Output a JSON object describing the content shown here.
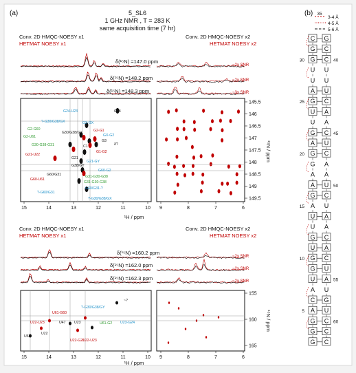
{
  "panel_a_label": "(a)",
  "panel_b_label": "(b)",
  "header": {
    "line1": "5_SL6",
    "line2": "1 GHz NMR , T = 283 K",
    "line3": "same acquisition time (7 hr)"
  },
  "colors": {
    "black": "#111111",
    "red": "#c00000",
    "blue": "#1a8fc9",
    "green": "#2e9a2e",
    "grey": "#888888"
  },
  "top": {
    "left_title_black": "Conv. 2D HMQC-NOESY x1",
    "left_title_red": "HETMAT NOESY x1",
    "right_title_black": "Conv. 2D HMQC-NOESY x2",
    "right_title_red": "HETMAT NOESY x2",
    "slice_labels": [
      "δ(¹⁵N) =147.0 ppm",
      "δ(¹⁵N) =148.2 ppm",
      "δ(¹⁵N) =148.3 ppm"
    ],
    "snr_labels": [
      "~2x SNR",
      "~2x SNR",
      "~3x SNR"
    ],
    "n_ticks": [
      "145.5",
      "146",
      "146.5",
      "147",
      "147.5",
      "148",
      "148.5",
      "149",
      "149.5"
    ],
    "n_axis_label": "¹⁵N / ppm",
    "h_ticks_left": [
      "15",
      "14",
      "13",
      "12",
      "11",
      "10"
    ],
    "h_ticks_right": [
      "9",
      "8",
      "7",
      "6"
    ],
    "h_axis_label": "¹H / ppm",
    "peaks": [
      {
        "t": "G24-U23",
        "c": "blue"
      },
      {
        "t": "G24",
        "c": "black"
      },
      {
        "t": "?-G30/G38/GX",
        "c": "blue"
      },
      {
        "t": "G2-G60",
        "c": "green"
      },
      {
        "t": "G2-GX",
        "c": "blue"
      },
      {
        "t": "G2-U61",
        "c": "green"
      },
      {
        "t": "G2-G1",
        "c": "red"
      },
      {
        "t": "GX-G2",
        "c": "blue"
      },
      {
        "t": "G30/G38/GX",
        "c": "black"
      },
      {
        "t": "G3",
        "c": "black"
      },
      {
        "t": "G30-G38-G31",
        "c": "green"
      },
      {
        "t": "C1",
        "c": "black"
      },
      {
        "t": "G1-G2",
        "c": "red"
      },
      {
        "t": "G21-U22",
        "c": "red"
      },
      {
        "t": "G21",
        "c": "black"
      },
      {
        "t": "G21-GY",
        "c": "blue"
      },
      {
        "t": "G38/GY",
        "c": "black"
      },
      {
        "t": "G60/G31",
        "c": "black"
      },
      {
        "t": "G60-U61",
        "c": "red"
      },
      {
        "t": "G31-G30-G38",
        "c": "green"
      },
      {
        "t": "G31-G30-G38",
        "c": "green"
      },
      {
        "t": "G60-G2",
        "c": "blue"
      },
      {
        "t": "G60/G31-?",
        "c": "blue"
      },
      {
        "t": "?-G60/G31",
        "c": "blue"
      },
      {
        "t": "?-G30/G38/GX",
        "c": "blue"
      },
      {
        "t": "δ?",
        "c": "black"
      }
    ]
  },
  "bottom": {
    "left_title_black": "Conv. 2D HMQC-NOESY x1",
    "left_title_red": "HETMAT NOESY x1",
    "right_title_black": "Conv. 2D HMQC-NOESY x2",
    "right_title_red": "HETMAT NOESY x2",
    "slice_labels": [
      "δ(¹⁵N) =160.2 ppm",
      "δ(¹⁵N) =162.0 ppm",
      "δ(¹⁵N) =162.3 ppm"
    ],
    "snr_labels": [
      "~2x SNR",
      "~2x SNR",
      "~2x SNR"
    ],
    "n_ticks": [
      "155",
      "160",
      "165"
    ],
    "n_axis_label": "¹⁵N / ppm",
    "h_ticks_left": [
      "15",
      "14",
      "13",
      "12",
      "11",
      "10"
    ],
    "h_ticks_right": [
      "9",
      "8",
      "7",
      "6"
    ],
    "h_axis_label": "¹H / ppm",
    "peaks": [
      {
        "t": "?-G30/G38/GY",
        "c": "blue"
      },
      {
        "t": "U61-G60",
        "c": "red"
      },
      {
        "t": "U22-U23",
        "c": "red"
      },
      {
        "t": "U47",
        "c": "black"
      },
      {
        "t": "U23",
        "c": "black"
      },
      {
        "t": "U61-G2",
        "c": "green"
      },
      {
        "t": "U23-G24",
        "c": "blue"
      },
      {
        "t": "U61",
        "c": "black"
      },
      {
        "t": "U22",
        "c": "black"
      },
      {
        "t": "U22-G21",
        "c": "red"
      },
      {
        "t": "U22-U23",
        "c": "red"
      },
      {
        "t": "~?",
        "c": "black"
      }
    ]
  },
  "legend": [
    {
      "label": "3-4 Å",
      "color": "#c00000",
      "dash": "2,2"
    },
    {
      "label": "4-5 Å",
      "color": "#c00000",
      "dash": "1,1.5"
    },
    {
      "label": "5-6 Å",
      "color": "#111111",
      "dash": "3,1,1,1"
    }
  ],
  "rna": {
    "loop": [
      "U",
      "U",
      "U"
    ],
    "pairs": [
      [
        "C",
        "G"
      ],
      [
        "G",
        "C"
      ],
      [
        "G",
        "C"
      ],
      [
        "U",
        "U"
      ],
      [
        "U",
        "U"
      ],
      [
        "A",
        "U"
      ],
      [
        "G",
        "C"
      ],
      [
        "U",
        "A"
      ],
      [
        "U",
        "A"
      ],
      [
        "G",
        "C"
      ],
      [
        "A",
        "U"
      ],
      [
        "G",
        "C"
      ],
      [
        "G",
        "A"
      ],
      [
        "A",
        "A"
      ],
      [
        "A",
        "U"
      ],
      [
        "G",
        "C"
      ],
      [
        "A",
        "U"
      ],
      [
        "U",
        "A"
      ],
      [
        "U",
        "A"
      ],
      [
        "G",
        "C"
      ],
      [
        "U",
        "A"
      ],
      [
        "G",
        "C"
      ],
      [
        "G",
        "U"
      ],
      [
        "U",
        "A"
      ],
      [
        "A",
        "U"
      ],
      [
        "C",
        "G"
      ],
      [
        "A",
        "U"
      ],
      [
        "G",
        "C"
      ],
      [
        "G",
        "C"
      ],
      [
        "G",
        "C"
      ]
    ],
    "pair_boxed": [
      true,
      true,
      true,
      false,
      false,
      true,
      true,
      true,
      false,
      true,
      true,
      true,
      false,
      false,
      true,
      true,
      false,
      true,
      false,
      true,
      true,
      true,
      true,
      true,
      false,
      true,
      true,
      true,
      true,
      true
    ],
    "numbers": [
      {
        "label": "35",
        "row": -1,
        "side": "top"
      },
      {
        "label": "30",
        "row": 2,
        "side": "left"
      },
      {
        "label": "40",
        "row": 2,
        "side": "right"
      },
      {
        "label": "25",
        "row": 6,
        "side": "left"
      },
      {
        "label": "45",
        "row": 9,
        "side": "right"
      },
      {
        "label": "20",
        "row": 11,
        "side": "left"
      },
      {
        "label": "50",
        "row": 14,
        "side": "right"
      },
      {
        "label": "15",
        "row": 16,
        "side": "left"
      },
      {
        "label": "10",
        "row": 21,
        "side": "left"
      },
      {
        "label": "55",
        "row": 23,
        "side": "right"
      },
      {
        "label": "5",
        "row": 26,
        "side": "left"
      },
      {
        "label": "60",
        "row": 27,
        "side": "right"
      }
    ]
  }
}
